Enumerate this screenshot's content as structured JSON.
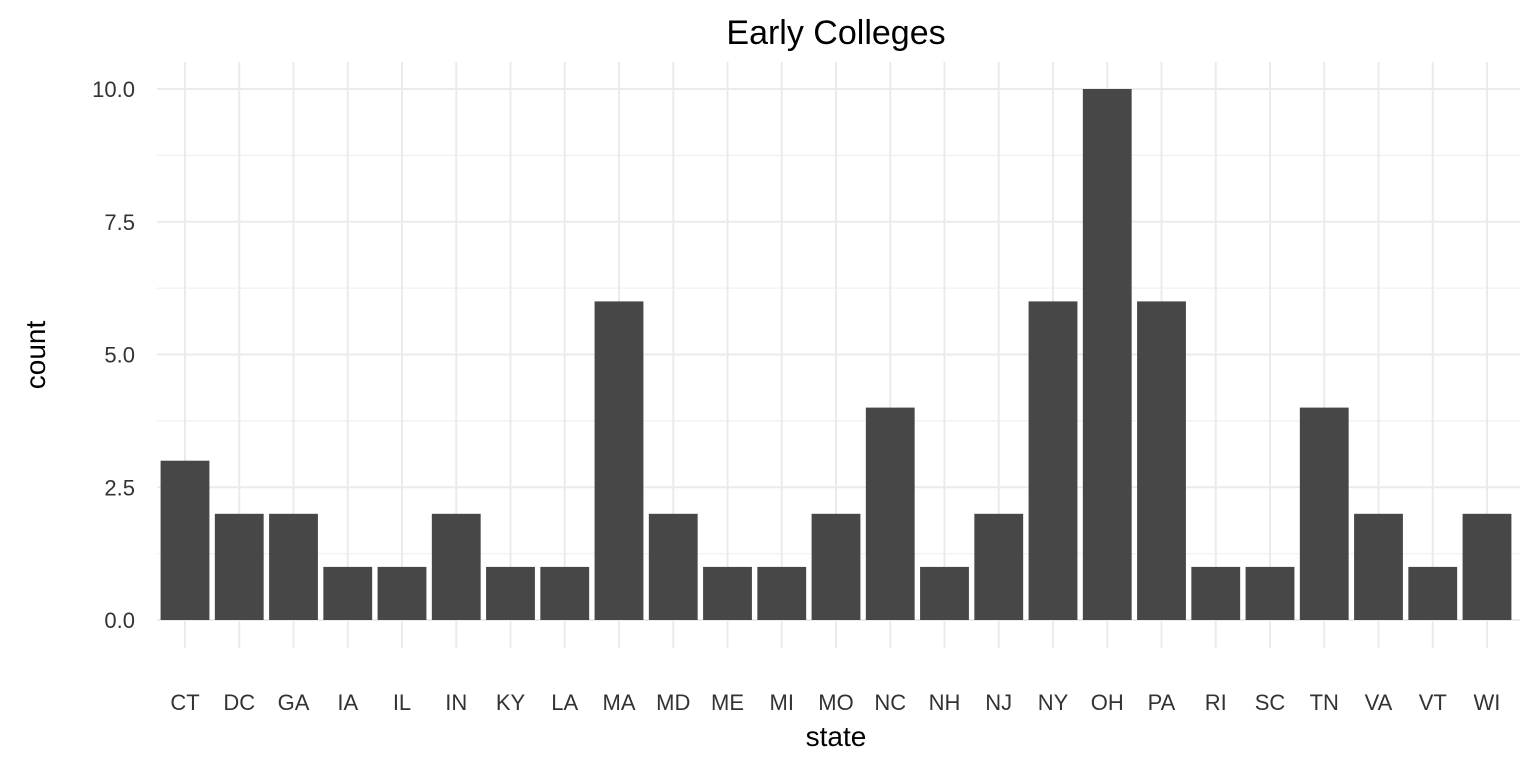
{
  "chart_data": {
    "type": "bar",
    "title": "Early Colleges",
    "xlabel": "state",
    "ylabel": "count",
    "categories": [
      "CT",
      "DC",
      "GA",
      "IA",
      "IL",
      "IN",
      "KY",
      "LA",
      "MA",
      "MD",
      "ME",
      "MI",
      "MO",
      "NC",
      "NH",
      "NJ",
      "NY",
      "OH",
      "PA",
      "RI",
      "SC",
      "TN",
      "VA",
      "VT",
      "WI"
    ],
    "values": [
      3,
      2,
      2,
      1,
      1,
      2,
      1,
      1,
      6,
      2,
      1,
      1,
      2,
      4,
      1,
      2,
      6,
      10,
      6,
      1,
      1,
      4,
      2,
      1,
      2
    ],
    "ylim": [
      0,
      10.5
    ],
    "yticks": [
      "0.0",
      "2.5",
      "5.0",
      "7.5",
      "10.0"
    ],
    "grid": true,
    "bar_color": "#474747",
    "grid_color": "#ebebeb"
  }
}
